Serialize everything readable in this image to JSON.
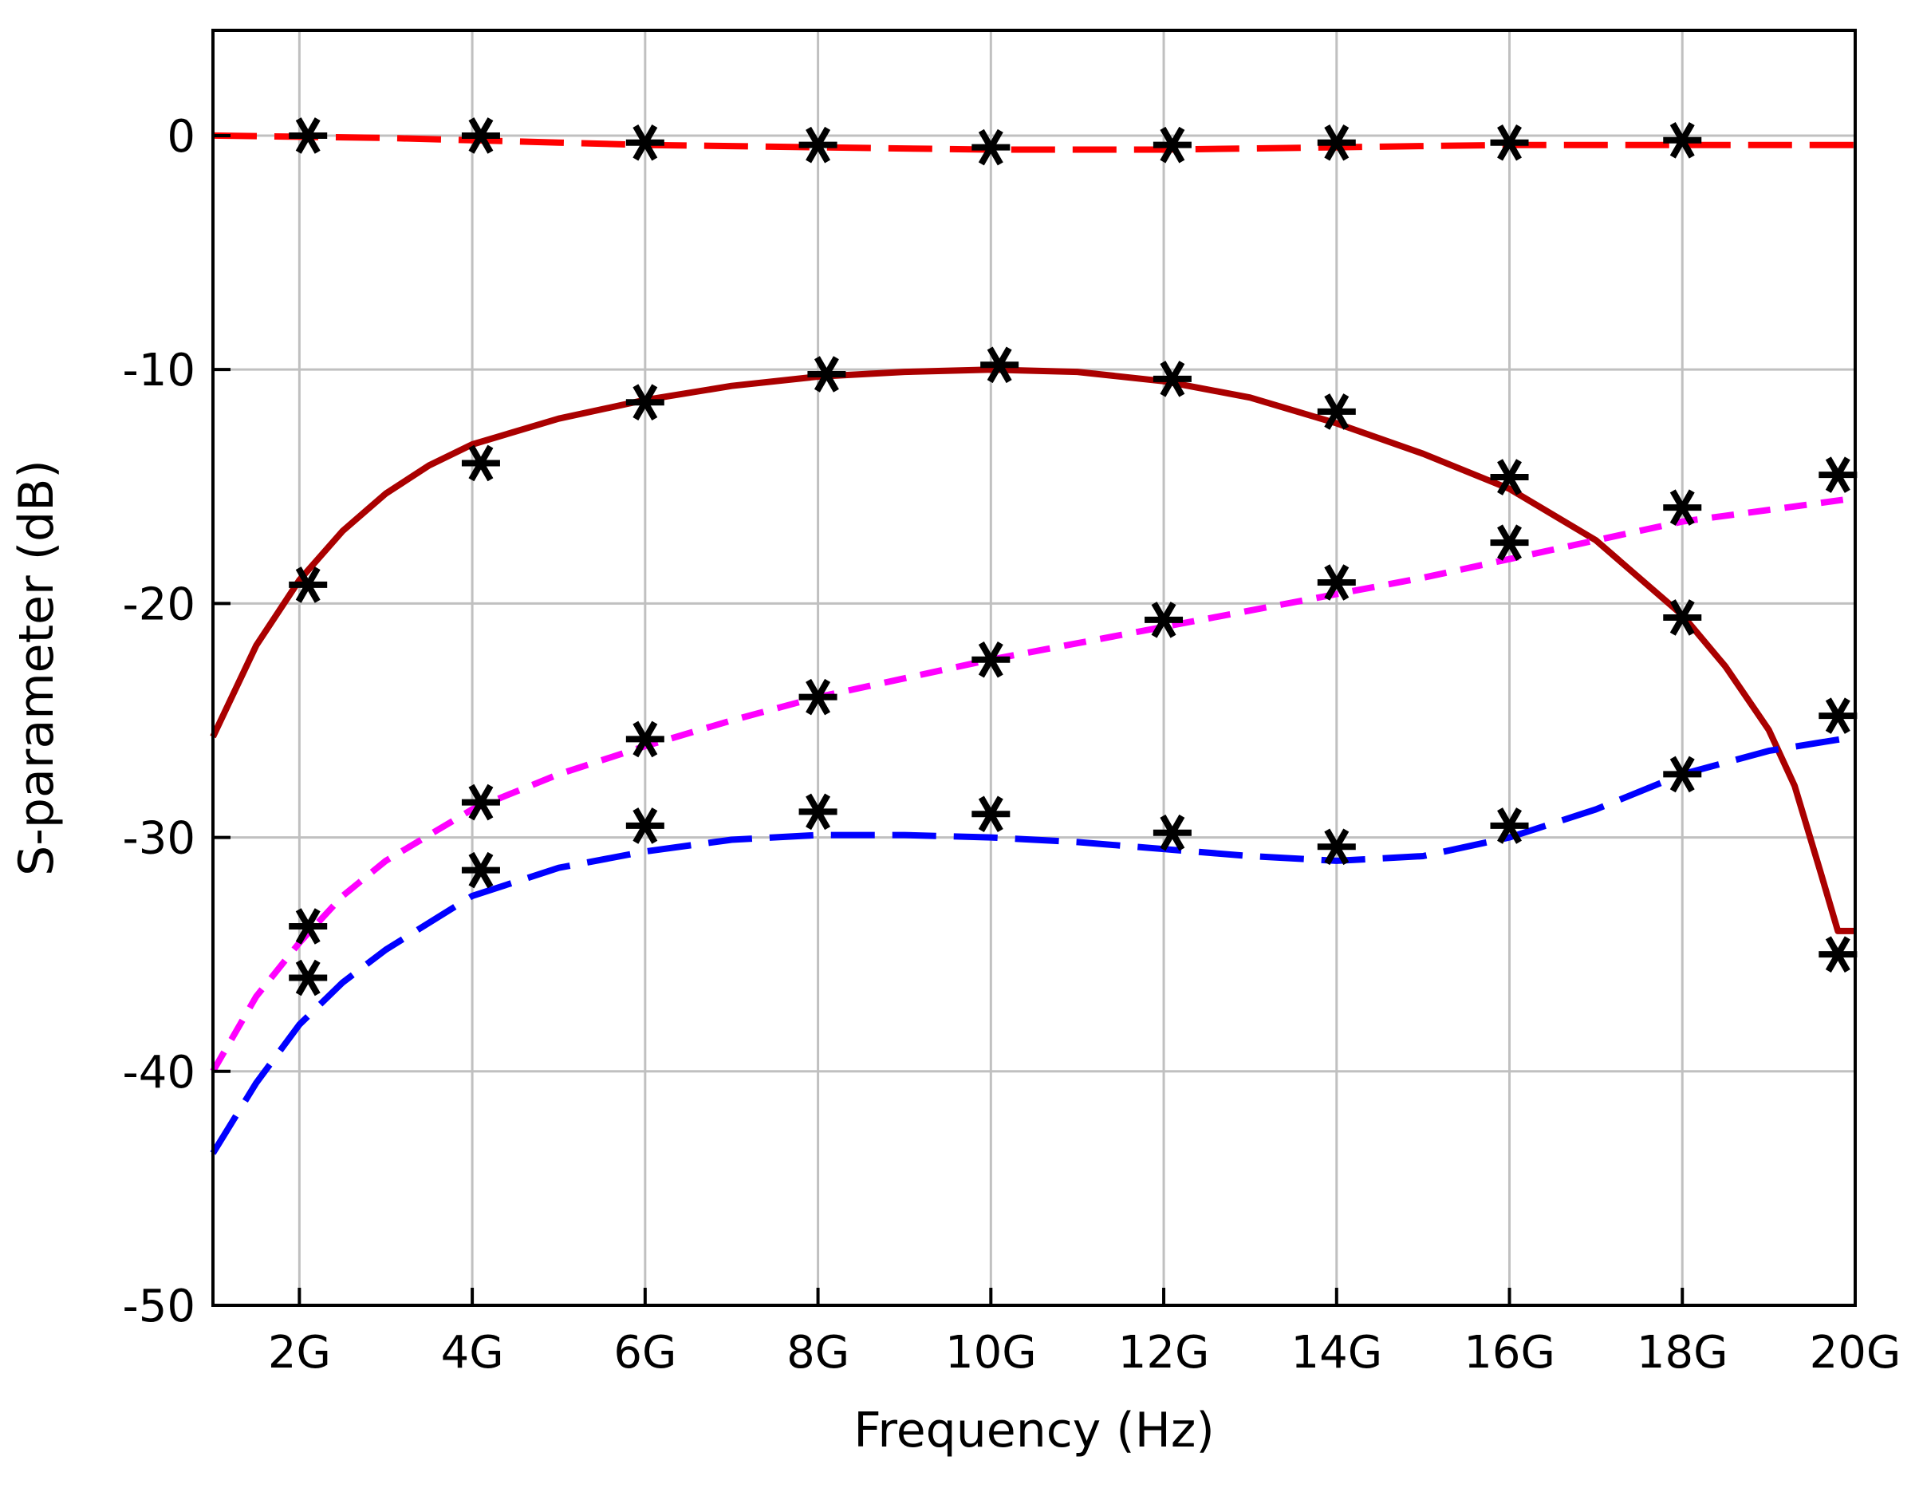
{
  "chart_data": {
    "type": "line",
    "xlabel": "Frequency (Hz)",
    "ylabel": "S-parameter (dB)",
    "xlim": [
      1,
      20
    ],
    "ylim": [
      -50,
      4.5
    ],
    "grid": true,
    "x_ticks": [
      {
        "value": 2,
        "label": "2G"
      },
      {
        "value": 4,
        "label": "4G"
      },
      {
        "value": 6,
        "label": "6G"
      },
      {
        "value": 8,
        "label": "8G"
      },
      {
        "value": 10,
        "label": "10G"
      },
      {
        "value": 12,
        "label": "12G"
      },
      {
        "value": 14,
        "label": "14G"
      },
      {
        "value": 16,
        "label": "16G"
      },
      {
        "value": 18,
        "label": "18G"
      },
      {
        "value": 20,
        "label": "20G"
      }
    ],
    "y_ticks": [
      {
        "value": 0,
        "label": "0"
      },
      {
        "value": -10,
        "label": "-10"
      },
      {
        "value": -20,
        "label": "-20"
      },
      {
        "value": -30,
        "label": "-30"
      },
      {
        "value": -40,
        "label": "-40"
      },
      {
        "value": -50,
        "label": "-50"
      }
    ],
    "series": [
      {
        "color": "#ff0000",
        "style": "long-dash",
        "x": [
          1,
          2,
          3,
          4,
          5,
          6,
          7,
          8,
          9,
          10,
          11,
          12,
          13,
          14,
          15,
          16,
          17,
          18,
          19,
          20
        ],
        "y": [
          0,
          -0.05,
          -0.1,
          -0.2,
          -0.3,
          -0.4,
          -0.45,
          -0.5,
          -0.55,
          -0.6,
          -0.6,
          -0.6,
          -0.55,
          -0.5,
          -0.45,
          -0.4,
          -0.4,
          -0.4,
          -0.4,
          -0.4
        ]
      },
      {
        "color": "#aa0000",
        "style": "solid",
        "x": [
          1,
          1.5,
          2,
          2.5,
          3,
          3.5,
          4,
          5,
          6,
          7,
          8,
          9,
          10,
          11,
          12,
          13,
          14,
          15,
          16,
          17,
          18,
          18.5,
          19,
          19.3,
          19.6,
          19.8,
          20
        ],
        "y": [
          -25.7,
          -21.8,
          -19,
          -16.9,
          -15.3,
          -14.1,
          -13.2,
          -12.1,
          -11.3,
          -10.7,
          -10.3,
          -10.1,
          -10,
          -10.1,
          -10.5,
          -11.2,
          -12.3,
          -13.6,
          -15.1,
          -17.3,
          -20.5,
          -22.7,
          -25.4,
          -27.8,
          -31.5,
          -34,
          -34
        ]
      },
      {
        "color": "#ff00ff",
        "style": "short-dash",
        "x": [
          1,
          1.5,
          2,
          2.5,
          3,
          4,
          5,
          6,
          7,
          8,
          9,
          10,
          11,
          12,
          13,
          14,
          15,
          16,
          17,
          18,
          19,
          20
        ],
        "y": [
          -40,
          -36.8,
          -34.5,
          -32.5,
          -31,
          -28.8,
          -27.3,
          -26.1,
          -25,
          -24,
          -23.2,
          -22.4,
          -21.7,
          -21,
          -20.3,
          -19.6,
          -18.9,
          -18.1,
          -17.3,
          -16.5,
          -16,
          -15.5
        ]
      },
      {
        "color": "#0000ff",
        "style": "long-dash",
        "x": [
          1,
          1.5,
          2,
          2.5,
          3,
          4,
          5,
          6,
          7,
          8,
          9,
          10,
          11,
          12,
          13,
          14,
          15,
          16,
          17,
          18,
          19,
          20
        ],
        "y": [
          -43.5,
          -40.5,
          -38,
          -36.2,
          -34.8,
          -32.5,
          -31.3,
          -30.6,
          -30.1,
          -29.9,
          -29.9,
          -30,
          -30.2,
          -30.5,
          -30.8,
          -31,
          -30.8,
          -30,
          -28.8,
          -27.3,
          -26.3,
          -25.7
        ]
      }
    ],
    "markers": {
      "symbol": "asterisk",
      "color": "#000000",
      "points": [
        {
          "x": 2.1,
          "y": 0
        },
        {
          "x": 4.1,
          "y": 0
        },
        {
          "x": 6.0,
          "y": -0.3
        },
        {
          "x": 8.0,
          "y": -0.4
        },
        {
          "x": 10.0,
          "y": -0.5
        },
        {
          "x": 12.1,
          "y": -0.4
        },
        {
          "x": 14.0,
          "y": -0.3
        },
        {
          "x": 16.0,
          "y": -0.3
        },
        {
          "x": 18.0,
          "y": -0.2
        },
        {
          "x": 2.1,
          "y": -19.2
        },
        {
          "x": 4.1,
          "y": -14
        },
        {
          "x": 6.0,
          "y": -11.4
        },
        {
          "x": 8.1,
          "y": -10.2
        },
        {
          "x": 10.1,
          "y": -9.8
        },
        {
          "x": 12.1,
          "y": -10.4
        },
        {
          "x": 14.0,
          "y": -11.8
        },
        {
          "x": 16.0,
          "y": -14.6
        },
        {
          "x": 18.0,
          "y": -20.6
        },
        {
          "x": 19.8,
          "y": -35
        },
        {
          "x": 2.1,
          "y": -33.8
        },
        {
          "x": 4.1,
          "y": -28.5
        },
        {
          "x": 6.0,
          "y": -25.8
        },
        {
          "x": 8.0,
          "y": -24
        },
        {
          "x": 10.0,
          "y": -22.4
        },
        {
          "x": 12.0,
          "y": -20.7
        },
        {
          "x": 14.0,
          "y": -19.1
        },
        {
          "x": 16.0,
          "y": -17.4
        },
        {
          "x": 18.0,
          "y": -15.9
        },
        {
          "x": 19.8,
          "y": -14.5
        },
        {
          "x": 2.1,
          "y": -36
        },
        {
          "x": 4.1,
          "y": -31.4
        },
        {
          "x": 6.0,
          "y": -29.5
        },
        {
          "x": 8.0,
          "y": -28.9
        },
        {
          "x": 10.0,
          "y": -29
        },
        {
          "x": 12.1,
          "y": -29.8
        },
        {
          "x": 14.0,
          "y": -30.4
        },
        {
          "x": 16.0,
          "y": -29.5
        },
        {
          "x": 18.0,
          "y": -27.3
        },
        {
          "x": 19.8,
          "y": -24.8
        }
      ]
    }
  }
}
